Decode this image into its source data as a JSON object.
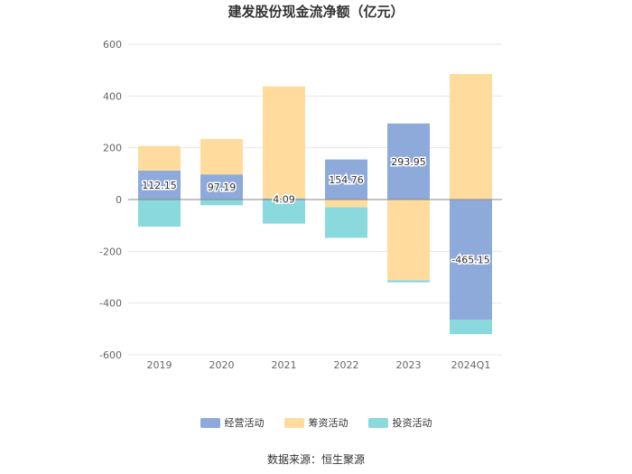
{
  "chart_data": {
    "type": "bar",
    "stacked": true,
    "title": "建发股份现金流净额（亿元）",
    "categories": [
      "2019",
      "2020",
      "2021",
      "2022",
      "2023",
      "2024Q1"
    ],
    "series": [
      {
        "name": "经营活动",
        "color": "#8eaadb",
        "values": [
          112.15,
          97.19,
          4.09,
          154.76,
          293.95,
          -465.15
        ]
      },
      {
        "name": "筹资活动",
        "color": "#ffdc9e",
        "values": [
          95,
          137,
          433,
          -30,
          -312,
          485
        ]
      },
      {
        "name": "投资活动",
        "color": "#8ad9dc",
        "values": [
          -105,
          -22,
          -93,
          -118,
          -8,
          -55
        ]
      }
    ],
    "data_labels": {
      "series_index": 0,
      "values": [
        "112.15",
        "97.19",
        "4.09",
        "154.76",
        "293.95",
        "-465.15"
      ]
    },
    "y_ticks": [
      "600",
      "400",
      "200",
      "0",
      "-200",
      "-400",
      "-600"
    ],
    "ylim": [
      -600,
      600
    ],
    "grid": true,
    "legend_position": "bottom"
  },
  "footer": {
    "source": "数据来源：恒生聚源"
  }
}
